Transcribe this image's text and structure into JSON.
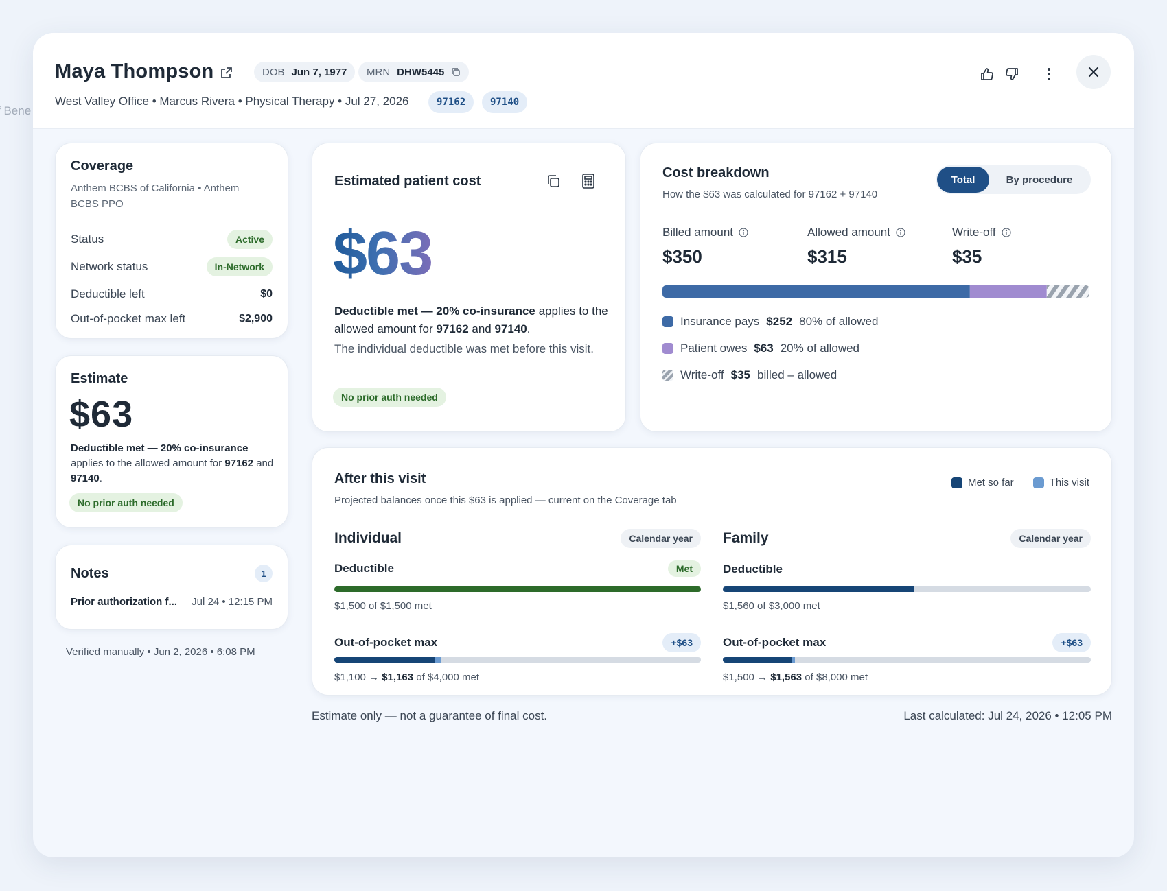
{
  "background": {
    "partial_label": "f Bene"
  },
  "header": {
    "patient_name": "Maya Thompson",
    "dob_label": "DOB",
    "dob_value": "Jun 7, 1977",
    "mrn_label": "MRN",
    "mrn_value": "DHW5445",
    "subline": "West Valley Office • Marcus Rivera • Physical Therapy • Jul 27, 2026",
    "codes": [
      "97162",
      "97140"
    ]
  },
  "coverage": {
    "title": "Coverage",
    "plan": "Anthem BCBS of California • Anthem BCBS PPO",
    "rows": [
      {
        "label": "Status",
        "value": "Active"
      },
      {
        "label": "Network status",
        "value": "In-Network"
      },
      {
        "label": "Deductible left",
        "value": "$0"
      },
      {
        "label": "Out-of-pocket max left",
        "value": "$2,900"
      }
    ]
  },
  "estimate": {
    "title": "Estimate",
    "amount": "$63",
    "desc_bold": "Deductible met — 20% co-insurance",
    "desc_rest": "applies to the allowed amount for",
    "code1": "97162",
    "and": "and",
    "code2": "97140",
    "period": ".",
    "auth": "No prior auth needed"
  },
  "notes": {
    "title": "Notes",
    "count": "1",
    "item_title": "Prior authorization f...",
    "item_time": "Jul 24 • 12:15 PM"
  },
  "verified": "Verified manually • Jun 2, 2026 • 6:08 PM",
  "patient_cost": {
    "title": "Estimated patient cost",
    "amount": "$63",
    "desc_bold": "Deductible met — 20% co-insurance",
    "desc_rest": " applies to the allowed amount for ",
    "code1": "97162",
    "and": " and ",
    "code2": "97140",
    "period": ".",
    "note": "The individual deductible was met before this visit.",
    "auth": "No prior auth needed"
  },
  "cost_breakdown": {
    "title": "Cost breakdown",
    "subtitle": "How the $63 was calculated for 97162 + 97140",
    "toggle": [
      "Total",
      "By procedure"
    ],
    "metrics": [
      {
        "label": "Billed amount",
        "value": "$350"
      },
      {
        "label": "Allowed amount",
        "value": "$315"
      },
      {
        "label": "Write-off",
        "value": "$35"
      }
    ],
    "bar": {
      "insurance": 252,
      "patient": 63,
      "writeoff": 35,
      "total": 350
    },
    "legend": [
      {
        "name": "Insurance pays",
        "amount": "$252",
        "note": "80% of allowed"
      },
      {
        "name": "Patient owes",
        "amount": "$63",
        "note": "20% of allowed"
      },
      {
        "name": "Write-off",
        "amount": "$35",
        "note": "billed – allowed"
      }
    ],
    "colors": {
      "insurance": "#3d6aa6",
      "patient": "#a08bd0",
      "writeoff": "#9aa3ae"
    }
  },
  "after_visit": {
    "title": "After this visit",
    "subtitle": "Projected balances once this $63 is applied — current on the Coverage tab",
    "legend": [
      "Met so far",
      "This visit"
    ],
    "individual": {
      "title": "Individual",
      "period": "Calendar year",
      "deductible_label": "Deductible",
      "deductible_badge": "Met",
      "deductible_text": "$1,500 of $1,500 met",
      "deductible_fraction": 1.0,
      "oop_label": "Out-of-pocket max",
      "oop_badge": "+$63",
      "oop_from": "$1,100",
      "oop_to": "$1,163",
      "oop_rest": "of $4,000 met",
      "oop_met_fraction": 0.275,
      "oop_visit_fraction": 0.01575
    },
    "family": {
      "title": "Family",
      "period": "Calendar year",
      "deductible_label": "Deductible",
      "deductible_text": "$1,560 of $3,000 met",
      "deductible_fraction": 0.52,
      "oop_label": "Out-of-pocket max",
      "oop_badge": "+$63",
      "oop_from": "$1,500",
      "oop_to": "$1,563",
      "oop_rest": "of $8,000 met",
      "oop_met_fraction": 0.1875,
      "oop_visit_fraction": 0.007875
    }
  },
  "footer": {
    "disclaimer": "Estimate only — not a guarantee of final cost.",
    "last_calculated": "Last calculated: Jul 24, 2026 • 12:05 PM"
  }
}
